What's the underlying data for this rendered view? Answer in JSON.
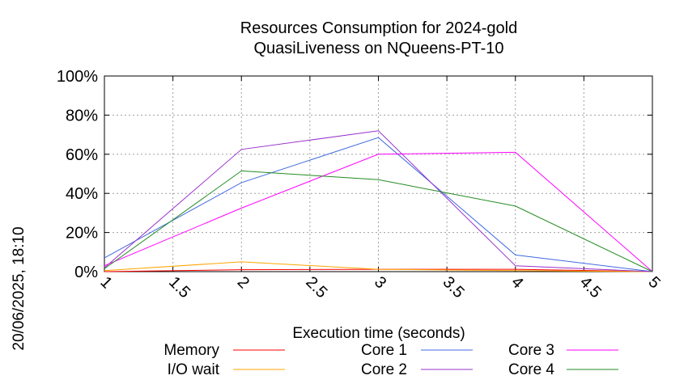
{
  "chart_data": {
    "type": "line",
    "title_line1": "Resources Consumption for 2024-gold",
    "title_line2": "QuasiLiveness on NQueens-PT-10",
    "xlabel": "Execution time (seconds)",
    "ylabel": "",
    "side_label": "20/06/2025, 18:10",
    "xlim": [
      1,
      5
    ],
    "ylim": [
      0,
      100
    ],
    "x_ticks": [
      1,
      1.5,
      2,
      2.5,
      3,
      3.5,
      4,
      4.5,
      5
    ],
    "x_tick_labels": [
      "1",
      "1.5",
      "2",
      "2.5",
      "3",
      "3.5",
      "4",
      "4.5",
      "5"
    ],
    "y_ticks": [
      0,
      20,
      40,
      60,
      80,
      100
    ],
    "y_tick_labels": [
      "0%",
      "20%",
      "40%",
      "60%",
      "80%",
      "100%"
    ],
    "grid": true,
    "legend_position": "bottom",
    "x": [
      1,
      2,
      3,
      4,
      5
    ],
    "series": [
      {
        "name": "Memory",
        "color": "#ff0000",
        "values": [
          0,
          1,
          1.2,
          1.2,
          0
        ]
      },
      {
        "name": "I/O wait",
        "color": "#ffa500",
        "values": [
          0.5,
          5,
          1.2,
          0.5,
          0
        ]
      },
      {
        "name": "Core 1",
        "color": "#4169e1",
        "values": [
          7,
          45.5,
          68.5,
          8.5,
          0
        ]
      },
      {
        "name": "Core 2",
        "color": "#9932cc",
        "values": [
          2,
          62.5,
          72,
          3,
          0
        ]
      },
      {
        "name": "Core 3",
        "color": "#ff00ff",
        "values": [
          3,
          32.5,
          60,
          61,
          0
        ]
      },
      {
        "name": "Core 4",
        "color": "#228b22",
        "values": [
          1.5,
          51.5,
          47,
          33.5,
          0
        ]
      }
    ]
  }
}
